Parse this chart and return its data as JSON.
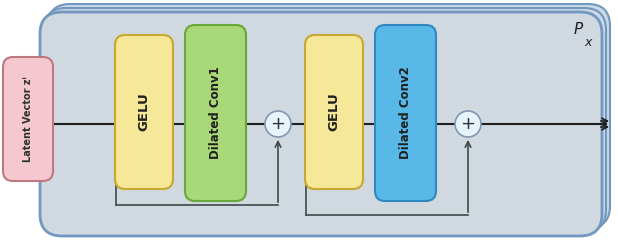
{
  "fig_width": 6.18,
  "fig_height": 2.4,
  "dpi": 100,
  "bg_layer_color": "#ccd8e4",
  "bg_layer_edge": "#7098c0",
  "main_box_color": "#d0d8e0",
  "main_box_edge": "#7098c0",
  "latent_box_color": "#f5c8d0",
  "latent_box_edge": "#c07880",
  "gelu_box_color": "#f5e898",
  "gelu_box_edge": "#c8a830",
  "dilated1_box_color": "#a8d878",
  "dilated1_box_edge": "#68a838",
  "dilated2_box_color": "#58b8e8",
  "dilated2_box_edge": "#3088c0",
  "circle_facecolor": "#e8f4fc",
  "circle_edgecolor": "#8098b0",
  "line_color": "#202020",
  "skip_color": "#404848",
  "label_latent": "Latent Vector zⁱ",
  "label_gelu": "GELU",
  "label_dilated1": "Dilated Conv1",
  "label_dilated2": "Dilated Conv2",
  "label_plus": "+",
  "label_Px_top": "P",
  "label_Px_sub": "x"
}
